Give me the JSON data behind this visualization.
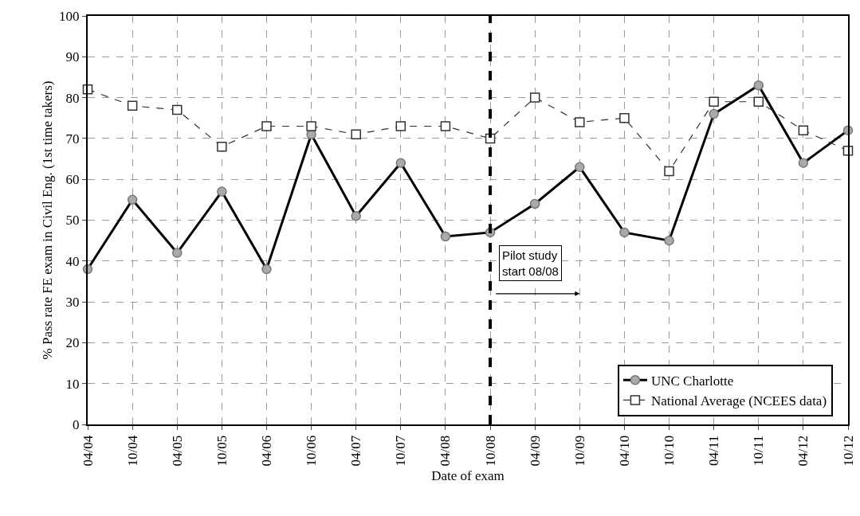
{
  "chart_data": {
    "type": "line",
    "xlabel": "Date of exam",
    "ylabel": "% Pass rate FE exam in Civil Eng. (1st time takers)",
    "categories": [
      "04/04",
      "10/04",
      "04/05",
      "10/05",
      "04/06",
      "10/06",
      "04/07",
      "10/07",
      "04/08",
      "10/08",
      "04/09",
      "10/09",
      "04/10",
      "10/10",
      "04/11",
      "10/11",
      "04/12",
      "10/12"
    ],
    "series": [
      {
        "name": "UNC Charlotte",
        "color": "#000000",
        "marker": "circle",
        "line_style": "solid",
        "values": [
          38,
          55,
          42,
          57,
          38,
          71,
          51,
          64,
          46,
          47,
          54,
          63,
          47,
          45,
          76,
          83,
          64,
          72
        ]
      },
      {
        "name": "National Average (NCEES data)",
        "color": "#333333",
        "marker": "square",
        "line_style": "dashed",
        "values": [
          82,
          78,
          77,
          68,
          73,
          73,
          71,
          73,
          73,
          70,
          80,
          74,
          75,
          62,
          79,
          79,
          72,
          67
        ]
      }
    ],
    "ylim": [
      0,
      100
    ],
    "yticks": [
      0,
      10,
      20,
      30,
      40,
      50,
      60,
      70,
      80,
      90,
      100
    ],
    "grid": true,
    "legend": "bottom right",
    "ref_lines": [
      {
        "axis": "x",
        "value": "10/08",
        "color": "#000000",
        "line_style": "dashed"
      }
    ],
    "annotations": [
      {
        "text": "Pilot study\nstart 08/08",
        "x": "10/08",
        "y": 35
      }
    ]
  }
}
